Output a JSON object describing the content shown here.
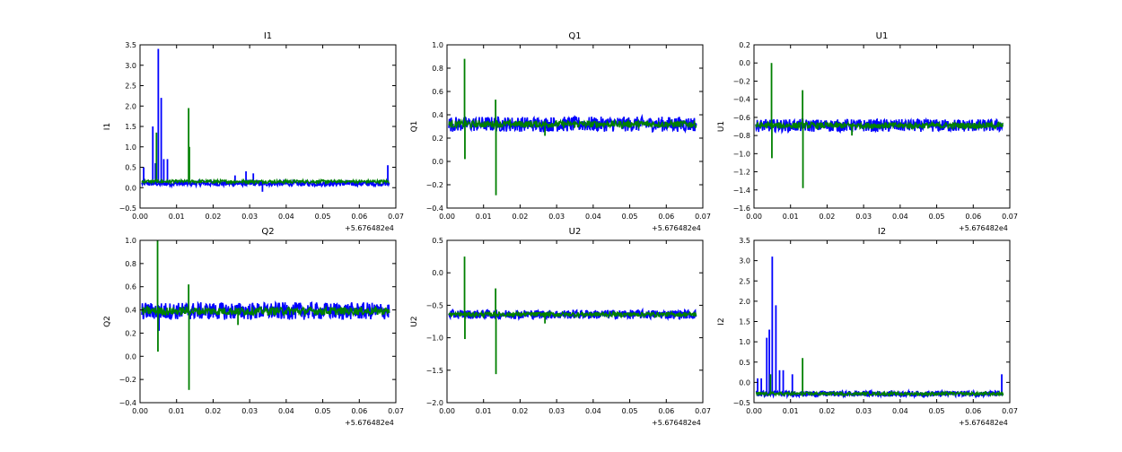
{
  "chart_data": [
    {
      "type": "line",
      "title": "I1",
      "ylabel": "I1",
      "xlim": [
        0.0,
        0.07
      ],
      "ylim": [
        -0.5,
        3.5
      ],
      "x_ticks": [
        "0.00",
        "0.01",
        "0.02",
        "0.03",
        "0.04",
        "0.05",
        "0.06",
        "0.07"
      ],
      "y_ticks": [
        "−0.5",
        "0.0",
        "0.5",
        "1.0",
        "1.5",
        "2.0",
        "2.5",
        "3.0",
        "3.5"
      ],
      "x_offset_label": "+5.676482e4",
      "series": [
        {
          "color": "#0000ff",
          "baseline": 0.1,
          "noise": 0.12,
          "spikes": [
            [
              0.001,
              0.5
            ],
            [
              0.0035,
              1.5
            ],
            [
              0.0042,
              0.6
            ],
            [
              0.005,
              3.4
            ],
            [
              0.0058,
              2.2
            ],
            [
              0.0065,
              0.7
            ],
            [
              0.0075,
              0.7
            ],
            [
              0.026,
              0.3
            ],
            [
              0.029,
              0.4
            ],
            [
              0.031,
              0.35
            ],
            [
              0.0335,
              -0.1
            ],
            [
              0.0678,
              0.55
            ]
          ]
        },
        {
          "color": "#008000",
          "baseline": 0.15,
          "noise": 0.08,
          "spikes": [
            [
              0.0045,
              1.35
            ],
            [
              0.0133,
              1.95
            ],
            [
              0.0135,
              1.0
            ]
          ]
        }
      ]
    },
    {
      "type": "line",
      "title": "Q1",
      "ylabel": "Q1",
      "xlim": [
        0.0,
        0.07
      ],
      "ylim": [
        -0.4,
        1.0
      ],
      "x_ticks": [
        "0.00",
        "0.01",
        "0.02",
        "0.03",
        "0.04",
        "0.05",
        "0.06",
        "0.07"
      ],
      "y_ticks": [
        "−0.4",
        "−0.2",
        "0.0",
        "0.2",
        "0.4",
        "0.6",
        "0.8",
        "1.0"
      ],
      "x_offset_label": "+5.676482e4",
      "series": [
        {
          "color": "#0000ff",
          "baseline": 0.32,
          "noise": 0.13,
          "spikes": []
        },
        {
          "color": "#008000",
          "baseline": 0.32,
          "noise": 0.06,
          "spikes": [
            [
              0.0048,
              0.88
            ],
            [
              0.0049,
              0.02
            ],
            [
              0.0133,
              0.53
            ],
            [
              0.0134,
              -0.29
            ],
            [
              0.0268,
              0.22
            ]
          ]
        }
      ]
    },
    {
      "type": "line",
      "title": "U1",
      "ylabel": "U1",
      "xlim": [
        0.0,
        0.07
      ],
      "ylim": [
        -1.6,
        0.2
      ],
      "x_ticks": [
        "0.00",
        "0.01",
        "0.02",
        "0.03",
        "0.04",
        "0.05",
        "0.06",
        "0.07"
      ],
      "y_ticks": [
        "−1.6",
        "−1.4",
        "−1.2",
        "−1.0",
        "−0.8",
        "−0.6",
        "−0.4",
        "−0.2",
        "0.0",
        "0.2"
      ],
      "x_offset_label": "+5.676482e4",
      "series": [
        {
          "color": "#0000ff",
          "baseline": -0.69,
          "noise": 0.14,
          "spikes": []
        },
        {
          "color": "#008000",
          "baseline": -0.69,
          "noise": 0.07,
          "spikes": [
            [
              0.0048,
              0.0
            ],
            [
              0.0049,
              -1.05
            ],
            [
              0.0133,
              -0.3
            ],
            [
              0.0134,
              -1.38
            ],
            [
              0.0268,
              -0.8
            ]
          ]
        }
      ]
    },
    {
      "type": "line",
      "title": "Q2",
      "ylabel": "Q2",
      "xlim": [
        0.0,
        0.07
      ],
      "ylim": [
        -0.4,
        1.0
      ],
      "x_ticks": [
        "0.00",
        "0.01",
        "0.02",
        "0.03",
        "0.04",
        "0.05",
        "0.06",
        "0.07"
      ],
      "y_ticks": [
        "−0.4",
        "−0.2",
        "0.0",
        "0.2",
        "0.4",
        "0.6",
        "0.8",
        "1.0"
      ],
      "x_offset_label": "+5.676482e4",
      "series": [
        {
          "color": "#0000ff",
          "baseline": 0.39,
          "noise": 0.15,
          "spikes": [
            [
              0.0052,
              0.22
            ]
          ]
        },
        {
          "color": "#008000",
          "baseline": 0.39,
          "noise": 0.07,
          "spikes": [
            [
              0.0048,
              1.0
            ],
            [
              0.0049,
              0.04
            ],
            [
              0.0133,
              0.62
            ],
            [
              0.0134,
              -0.29
            ],
            [
              0.0268,
              0.27
            ]
          ]
        }
      ]
    },
    {
      "type": "line",
      "title": "U2",
      "ylabel": "U2",
      "xlim": [
        0.0,
        0.07
      ],
      "ylim": [
        -2.0,
        0.5
      ],
      "x_ticks": [
        "0.00",
        "0.01",
        "0.02",
        "0.03",
        "0.04",
        "0.05",
        "0.06",
        "0.07"
      ],
      "y_ticks": [
        "−2.0",
        "−1.5",
        "−1.0",
        "−0.5",
        "0.0",
        "0.5"
      ],
      "x_offset_label": "+5.676482e4",
      "series": [
        {
          "color": "#0000ff",
          "baseline": -0.64,
          "noise": 0.14,
          "spikes": []
        },
        {
          "color": "#008000",
          "baseline": -0.64,
          "noise": 0.07,
          "spikes": [
            [
              0.0048,
              0.25
            ],
            [
              0.0049,
              -1.02
            ],
            [
              0.0133,
              -0.24
            ],
            [
              0.0134,
              -1.56
            ],
            [
              0.0268,
              -0.78
            ]
          ]
        }
      ]
    },
    {
      "type": "line",
      "title": "I2",
      "ylabel": "I2",
      "xlim": [
        0.0,
        0.07
      ],
      "ylim": [
        -0.5,
        3.5
      ],
      "x_ticks": [
        "0.00",
        "0.01",
        "0.02",
        "0.03",
        "0.04",
        "0.05",
        "0.06",
        "0.07"
      ],
      "y_ticks": [
        "−0.5",
        "0.0",
        "0.5",
        "1.0",
        "1.5",
        "2.0",
        "2.5",
        "3.0",
        "3.5"
      ],
      "x_offset_label": "+5.676482e4",
      "series": [
        {
          "color": "#0000ff",
          "baseline": -0.28,
          "noise": 0.14,
          "spikes": [
            [
              0.001,
              0.1
            ],
            [
              0.002,
              0.1
            ],
            [
              0.0035,
              1.1
            ],
            [
              0.0042,
              1.3
            ],
            [
              0.005,
              3.1
            ],
            [
              0.006,
              1.9
            ],
            [
              0.007,
              0.3
            ],
            [
              0.008,
              0.3
            ],
            [
              0.0105,
              0.2
            ],
            [
              0.0678,
              0.2
            ]
          ]
        },
        {
          "color": "#008000",
          "baseline": -0.28,
          "noise": 0.08,
          "spikes": [
            [
              0.0045,
              0.2
            ],
            [
              0.0133,
              0.6
            ],
            [
              0.0134,
              -0.3
            ]
          ]
        }
      ]
    }
  ]
}
